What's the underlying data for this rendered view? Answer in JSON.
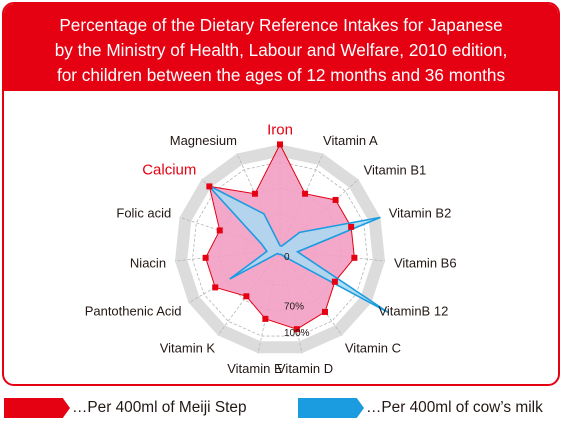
{
  "title_lines": [
    "Percentage of the Dietary Reference Intakes for Japanese",
    "by the Ministry of Health, Labour and Welfare, 2010 edition,",
    "for children between the ages of 12 months and 36 months"
  ],
  "legend": [
    {
      "label": "…Per 400ml of Meiji Step",
      "color": "#e50012"
    },
    {
      "label": "…Per 400ml of cow’s milk",
      "color": "#1b9be0"
    }
  ],
  "colors": {
    "accent": "#e50012",
    "meiji_fill": "#f29ec4",
    "milk_fill": "#a8dcf4",
    "milk_line": "#1b9be0",
    "ring_fill": "#dcdcdc"
  },
  "chart_data": {
    "type": "radar",
    "title": "Percentage of the Dietary Reference Intakes for Japanese by the Ministry of Health, Labour and Welfare, 2010 edition, for children between the ages of 12 months and 36 months",
    "axes": [
      "Iron",
      "Vitamin A",
      "Vitamin B1",
      "Vitamin B2",
      "Vitamin B6",
      "VitaminB 12",
      "Vitamin C",
      "Vitamin D",
      "Vitamin E",
      "Vitamin K",
      "Pantothenic Acid",
      "Niacin",
      "Folic acid",
      "Calcium",
      "Magnesium"
    ],
    "highlighted_axes": [
      "Iron",
      "Calcium"
    ],
    "tick_labels": [
      "0",
      "70%",
      "100%"
    ],
    "ticks": [
      0,
      70,
      100
    ],
    "range": [
      0,
      120
    ],
    "grid": true,
    "series": [
      {
        "name": "Meiji Step",
        "values": [
          120,
          70,
          85,
          85,
          85,
          72,
          87,
          92,
          80,
          65,
          85,
          85,
          72,
          108,
          70
        ]
      },
      {
        "name": "cow’s milk",
        "values": [
          5,
          5,
          30,
          120,
          20,
          142,
          10,
          5,
          5,
          5,
          66,
          15,
          22,
          110,
          45
        ]
      }
    ]
  }
}
